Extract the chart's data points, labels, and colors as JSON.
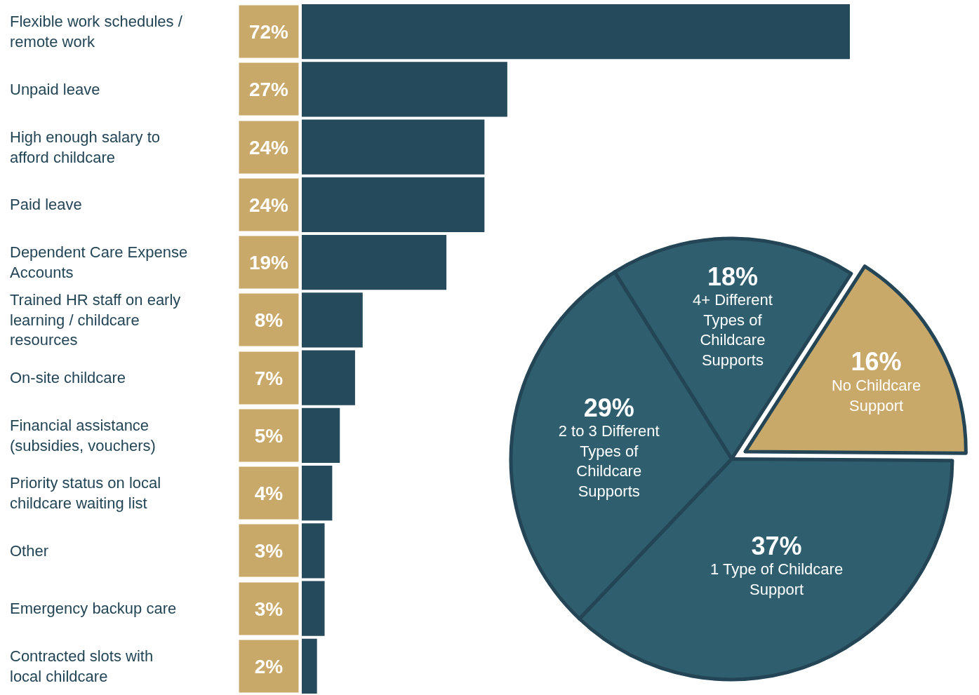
{
  "chart_data": [
    {
      "type": "bar",
      "orientation": "horizontal",
      "categories": [
        "Flexible work schedules / remote work",
        "Unpaid leave",
        "High enough salary to afford childcare",
        "Paid leave",
        "Dependent Care Expense Accounts",
        "Trained HR staff on early learning / childcare resources",
        "On-site childcare",
        "Financial assistance (subsidies, vouchers)",
        "Priority status on local childcare waiting list",
        "Other",
        "Emergency backup care",
        "Contracted slots with local childcare"
      ],
      "values": [
        72,
        27,
        24,
        24,
        19,
        8,
        7,
        5,
        4,
        3,
        3,
        2
      ],
      "value_labels": [
        "72%",
        "27%",
        "24%",
        "24%",
        "19%",
        "8%",
        "7%",
        "5%",
        "4%",
        "3%",
        "3%",
        "2%"
      ],
      "color": "#244a5b",
      "grid": false,
      "legend": false
    },
    {
      "type": "pie",
      "categories": [
        "4+ Different Types of Childcare Supports",
        "No Childcare Support",
        "1 Type of Childcare Support",
        "2 to 3 Different Types of Childcare Supports"
      ],
      "values": [
        18,
        16,
        37,
        29
      ],
      "value_labels": [
        "18%",
        "16%",
        "37%",
        "29%"
      ],
      "colors": [
        "#2f5f6e",
        "#c9a96a",
        "#2f5f6e",
        "#2f5f6e"
      ],
      "legend": false
    }
  ]
}
